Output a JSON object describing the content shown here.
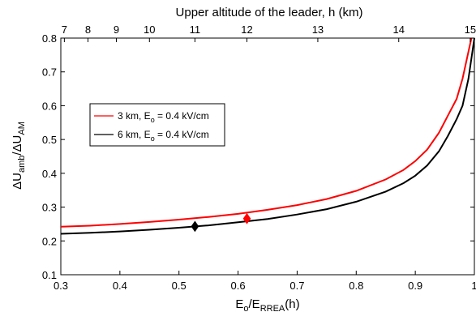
{
  "chart_data": {
    "type": "line",
    "xlabel": "E_o/E_RREA(h)",
    "ylabel": "ΔU_amb/ΔU_AM",
    "top_axis_label": "Upper altitude of the leader, h (km)",
    "xlim": [
      0.3,
      1.0
    ],
    "ylim": [
      0.1,
      0.8
    ],
    "x_ticks": [
      0.3,
      0.4,
      0.5,
      0.6,
      0.7,
      0.8,
      0.9,
      1
    ],
    "x_tick_labels": [
      "0.3",
      "0.4",
      "0.5",
      "0.6",
      "0.7",
      "0.8",
      "0.9",
      "1"
    ],
    "y_ticks": [
      0.1,
      0.2,
      0.3,
      0.4,
      0.5,
      0.6,
      0.7,
      0.8
    ],
    "y_tick_labels": [
      "0.1",
      "0.2",
      "0.3",
      "0.4",
      "0.5",
      "0.6",
      "0.7",
      "0.8"
    ],
    "top_ticks": [
      {
        "label": "7",
        "x": 0.306
      },
      {
        "label": "8",
        "x": 0.346
      },
      {
        "label": "9",
        "x": 0.394
      },
      {
        "label": "10",
        "x": 0.45
      },
      {
        "label": "11",
        "x": 0.527
      },
      {
        "label": "12",
        "x": 0.615
      },
      {
        "label": "13",
        "x": 0.735
      },
      {
        "label": "14",
        "x": 0.872
      },
      {
        "label": "15",
        "x": 0.993
      }
    ],
    "grid": false,
    "legend_position": "upper-left",
    "series": [
      {
        "name": "3 km, E_o = 0.4 kV/cm",
        "color": "#ff0000",
        "x": [
          0.3,
          0.35,
          0.4,
          0.45,
          0.5,
          0.55,
          0.6,
          0.65,
          0.7,
          0.75,
          0.8,
          0.85,
          0.88,
          0.9,
          0.92,
          0.94,
          0.955,
          0.97,
          0.98,
          0.99,
          0.995
        ],
        "y": [
          0.242,
          0.245,
          0.25,
          0.256,
          0.263,
          0.271,
          0.28,
          0.292,
          0.306,
          0.324,
          0.348,
          0.382,
          0.41,
          0.436,
          0.47,
          0.52,
          0.57,
          0.62,
          0.68,
          0.76,
          0.8
        ],
        "marker": {
          "x": 0.615,
          "y": 0.266,
          "shape": "diamond"
        }
      },
      {
        "name": "6 km, E_o = 0.4 kV/cm",
        "color": "#000000",
        "x": [
          0.3,
          0.35,
          0.4,
          0.45,
          0.5,
          0.55,
          0.6,
          0.65,
          0.7,
          0.75,
          0.8,
          0.85,
          0.88,
          0.9,
          0.92,
          0.94,
          0.955,
          0.97,
          0.98,
          0.99,
          1.0
        ],
        "y": [
          0.221,
          0.224,
          0.228,
          0.233,
          0.239,
          0.246,
          0.255,
          0.265,
          0.278,
          0.294,
          0.316,
          0.346,
          0.371,
          0.393,
          0.423,
          0.465,
          0.51,
          0.56,
          0.6,
          0.68,
          0.8
        ],
        "marker": {
          "x": 0.527,
          "y": 0.243,
          "shape": "diamond"
        }
      }
    ]
  }
}
